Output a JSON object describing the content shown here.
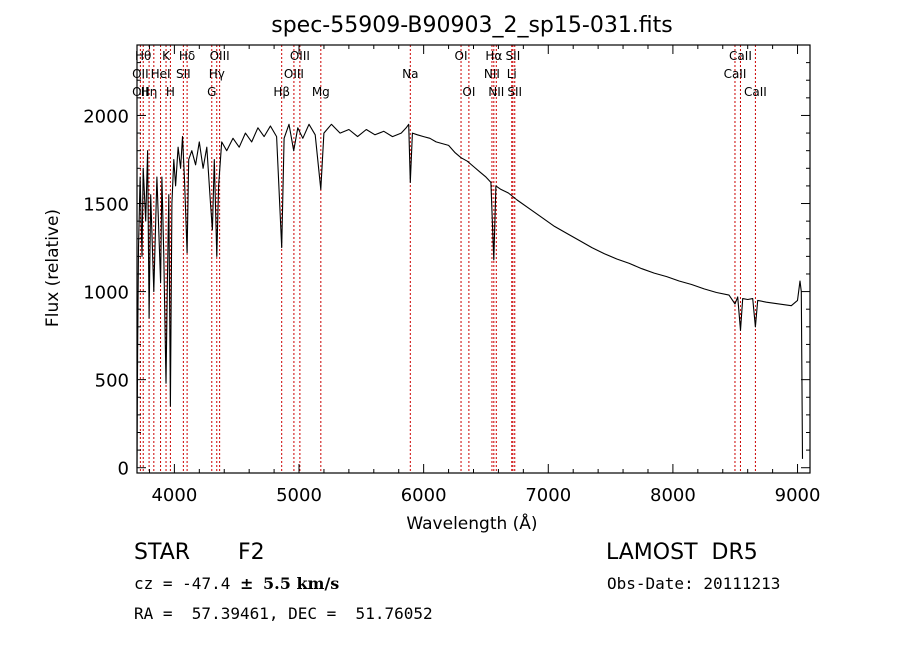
{
  "chart_data": {
    "type": "line",
    "title": "spec-55909-B90903_2_sp15-031.fits",
    "xlabel": "Wavelength (Å)",
    "ylabel": "Flux (relative)",
    "xlim": [
      3700,
      9100
    ],
    "ylim": [
      -30,
      2400
    ],
    "xticks": [
      4000,
      5000,
      6000,
      7000,
      8000,
      9000
    ],
    "yticks": [
      0,
      500,
      1000,
      1500,
      2000
    ],
    "line_color": "#000000",
    "marker_color": "#cc0000",
    "grid": false,
    "series": [
      {
        "values": [
          {
            "x": 3700,
            "y": 0
          },
          {
            "x": 3705,
            "y": 650
          },
          {
            "x": 3712,
            "y": 1250
          },
          {
            "x": 3725,
            "y": 1650
          },
          {
            "x": 3740,
            "y": 1200
          },
          {
            "x": 3750,
            "y": 1700
          },
          {
            "x": 3770,
            "y": 1400
          },
          {
            "x": 3785,
            "y": 1800
          },
          {
            "x": 3797,
            "y": 850
          },
          {
            "x": 3810,
            "y": 1550
          },
          {
            "x": 3835,
            "y": 1000
          },
          {
            "x": 3860,
            "y": 1650
          },
          {
            "x": 3889,
            "y": 1050
          },
          {
            "x": 3900,
            "y": 1650
          },
          {
            "x": 3915,
            "y": 1200
          },
          {
            "x": 3933,
            "y": 480
          },
          {
            "x": 3945,
            "y": 1100
          },
          {
            "x": 3955,
            "y": 1550
          },
          {
            "x": 3968,
            "y": 350
          },
          {
            "x": 3980,
            "y": 1500
          },
          {
            "x": 3995,
            "y": 1750
          },
          {
            "x": 4010,
            "y": 1600
          },
          {
            "x": 4030,
            "y": 1820
          },
          {
            "x": 4050,
            "y": 1700
          },
          {
            "x": 4065,
            "y": 1880
          },
          {
            "x": 4080,
            "y": 1650
          },
          {
            "x": 4102,
            "y": 1220
          },
          {
            "x": 4115,
            "y": 1750
          },
          {
            "x": 4140,
            "y": 1800
          },
          {
            "x": 4170,
            "y": 1720
          },
          {
            "x": 4200,
            "y": 1850
          },
          {
            "x": 4230,
            "y": 1700
          },
          {
            "x": 4260,
            "y": 1820
          },
          {
            "x": 4290,
            "y": 1500
          },
          {
            "x": 4305,
            "y": 1350
          },
          {
            "x": 4320,
            "y": 1750
          },
          {
            "x": 4340,
            "y": 1200
          },
          {
            "x": 4355,
            "y": 1600
          },
          {
            "x": 4380,
            "y": 1850
          },
          {
            "x": 4420,
            "y": 1800
          },
          {
            "x": 4470,
            "y": 1870
          },
          {
            "x": 4520,
            "y": 1820
          },
          {
            "x": 4570,
            "y": 1900
          },
          {
            "x": 4620,
            "y": 1850
          },
          {
            "x": 4670,
            "y": 1930
          },
          {
            "x": 4720,
            "y": 1880
          },
          {
            "x": 4770,
            "y": 1940
          },
          {
            "x": 4820,
            "y": 1880
          },
          {
            "x": 4861,
            "y": 1250
          },
          {
            "x": 4880,
            "y": 1870
          },
          {
            "x": 4920,
            "y": 1950
          },
          {
            "x": 4957,
            "y": 1800
          },
          {
            "x": 4990,
            "y": 1930
          },
          {
            "x": 5030,
            "y": 1870
          },
          {
            "x": 5080,
            "y": 1950
          },
          {
            "x": 5130,
            "y": 1890
          },
          {
            "x": 5175,
            "y": 1580
          },
          {
            "x": 5200,
            "y": 1900
          },
          {
            "x": 5260,
            "y": 1950
          },
          {
            "x": 5330,
            "y": 1900
          },
          {
            "x": 5400,
            "y": 1920
          },
          {
            "x": 5470,
            "y": 1880
          },
          {
            "x": 5540,
            "y": 1920
          },
          {
            "x": 5610,
            "y": 1890
          },
          {
            "x": 5680,
            "y": 1910
          },
          {
            "x": 5750,
            "y": 1880
          },
          {
            "x": 5820,
            "y": 1900
          },
          {
            "x": 5860,
            "y": 1930
          },
          {
            "x": 5880,
            "y": 1950
          },
          {
            "x": 5893,
            "y": 1620
          },
          {
            "x": 5910,
            "y": 1900
          },
          {
            "x": 5950,
            "y": 1890
          },
          {
            "x": 6000,
            "y": 1880
          },
          {
            "x": 6050,
            "y": 1870
          },
          {
            "x": 6100,
            "y": 1850
          },
          {
            "x": 6150,
            "y": 1840
          },
          {
            "x": 6200,
            "y": 1830
          },
          {
            "x": 6250,
            "y": 1790
          },
          {
            "x": 6300,
            "y": 1760
          },
          {
            "x": 6350,
            "y": 1740
          },
          {
            "x": 6400,
            "y": 1710
          },
          {
            "x": 6450,
            "y": 1680
          },
          {
            "x": 6500,
            "y": 1650
          },
          {
            "x": 6540,
            "y": 1620
          },
          {
            "x": 6563,
            "y": 1180
          },
          {
            "x": 6580,
            "y": 1600
          },
          {
            "x": 6620,
            "y": 1580
          },
          {
            "x": 6680,
            "y": 1560
          },
          {
            "x": 6750,
            "y": 1520
          },
          {
            "x": 6850,
            "y": 1470
          },
          {
            "x": 6950,
            "y": 1420
          },
          {
            "x": 7050,
            "y": 1370
          },
          {
            "x": 7150,
            "y": 1330
          },
          {
            "x": 7250,
            "y": 1290
          },
          {
            "x": 7350,
            "y": 1250
          },
          {
            "x": 7450,
            "y": 1215
          },
          {
            "x": 7550,
            "y": 1185
          },
          {
            "x": 7650,
            "y": 1160
          },
          {
            "x": 7750,
            "y": 1130
          },
          {
            "x": 7850,
            "y": 1105
          },
          {
            "x": 7950,
            "y": 1085
          },
          {
            "x": 8050,
            "y": 1060
          },
          {
            "x": 8150,
            "y": 1040
          },
          {
            "x": 8250,
            "y": 1015
          },
          {
            "x": 8350,
            "y": 995
          },
          {
            "x": 8450,
            "y": 980
          },
          {
            "x": 8498,
            "y": 930
          },
          {
            "x": 8520,
            "y": 970
          },
          {
            "x": 8542,
            "y": 780
          },
          {
            "x": 8560,
            "y": 960
          },
          {
            "x": 8600,
            "y": 955
          },
          {
            "x": 8640,
            "y": 960
          },
          {
            "x": 8662,
            "y": 800
          },
          {
            "x": 8680,
            "y": 950
          },
          {
            "x": 8750,
            "y": 940
          },
          {
            "x": 8850,
            "y": 930
          },
          {
            "x": 8950,
            "y": 920
          },
          {
            "x": 9000,
            "y": 950
          },
          {
            "x": 9020,
            "y": 1060
          },
          {
            "x": 9030,
            "y": 1000
          },
          {
            "x": 9040,
            "y": 50
          }
        ]
      }
    ],
    "spectral_lines": [
      {
        "wl": 3727,
        "labels": [
          "",
          "OII",
          "OII"
        ]
      },
      {
        "wl": 3750,
        "labels": [
          "Hθ",
          "",
          ""
        ]
      },
      {
        "wl": 3797,
        "labels": [
          "",
          "",
          "Hη"
        ]
      },
      {
        "wl": 3835,
        "labels": [
          "",
          "",
          ""
        ]
      },
      {
        "wl": 3889,
        "labels": [
          "",
          "HeI",
          ""
        ]
      },
      {
        "wl": 3933,
        "labels": [
          "K",
          "",
          ""
        ]
      },
      {
        "wl": 3968,
        "labels": [
          "",
          "",
          "H"
        ]
      },
      {
        "wl": 4072,
        "labels": [
          "",
          "SII",
          ""
        ]
      },
      {
        "wl": 4102,
        "labels": [
          "Hδ",
          "",
          ""
        ]
      },
      {
        "wl": 4300,
        "labels": [
          "",
          "",
          "G"
        ]
      },
      {
        "wl": 4340,
        "labels": [
          "",
          "Hγ",
          ""
        ]
      },
      {
        "wl": 4363,
        "labels": [
          "OIII",
          "",
          ""
        ]
      },
      {
        "wl": 4861,
        "labels": [
          "",
          "",
          "Hβ"
        ]
      },
      {
        "wl": 4959,
        "labels": [
          "",
          "OIII",
          ""
        ]
      },
      {
        "wl": 5007,
        "labels": [
          "OIII",
          "",
          ""
        ]
      },
      {
        "wl": 5175,
        "labels": [
          "",
          "",
          "Mg"
        ]
      },
      {
        "wl": 5893,
        "labels": [
          "",
          "Na",
          ""
        ]
      },
      {
        "wl": 6300,
        "labels": [
          "OI",
          "",
          ""
        ]
      },
      {
        "wl": 6363,
        "labels": [
          "",
          "",
          "OI"
        ]
      },
      {
        "wl": 6548,
        "labels": [
          "",
          "NII",
          ""
        ]
      },
      {
        "wl": 6563,
        "labels": [
          "Hα",
          "",
          ""
        ]
      },
      {
        "wl": 6583,
        "labels": [
          "",
          "",
          "NII"
        ]
      },
      {
        "wl": 6707,
        "labels": [
          "",
          "Li",
          ""
        ]
      },
      {
        "wl": 6716,
        "labels": [
          "SII",
          "",
          ""
        ]
      },
      {
        "wl": 6731,
        "labels": [
          "",
          "",
          "SII"
        ]
      },
      {
        "wl": 8498,
        "labels": [
          "",
          "CaII",
          ""
        ]
      },
      {
        "wl": 8542,
        "labels": [
          "CaII",
          "",
          ""
        ]
      },
      {
        "wl": 8662,
        "labels": [
          "",
          "",
          "CaII"
        ]
      }
    ]
  },
  "info": {
    "object_class": "STAR",
    "subclass": "F2",
    "survey": "LAMOST  DR5",
    "cz_label": "cz = ",
    "cz_value": "-47.4",
    "cz_pm": "±",
    "cz_err": "5.5 km/s",
    "obs_date": "Obs-Date: 20111213",
    "coords": "RA =  57.39461, DEC =  51.76052"
  }
}
